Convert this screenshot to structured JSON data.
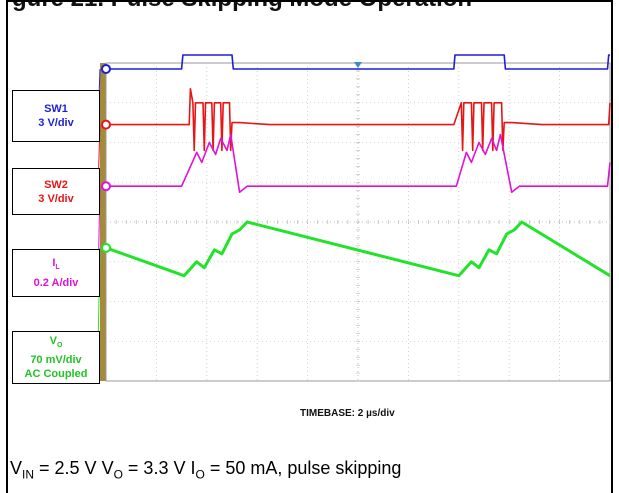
{
  "header": {
    "clipped_title": "gure 21. Pulse Skipping Mode Operation"
  },
  "chart_data": {
    "type": "line",
    "title": "",
    "timebase": "TIMEBASE: 2 µs/div",
    "grid": true,
    "divisions": {
      "x": 10,
      "y": 8
    },
    "x_range_us": [
      0,
      20
    ],
    "channels": [
      {
        "name": "SW1",
        "scale": "3 V/div",
        "color": "#1f1fd6",
        "points_us_div": [
          [
            0,
            3.85
          ],
          [
            3.0,
            3.85
          ],
          [
            3.05,
            4.2
          ],
          [
            5.0,
            4.2
          ],
          [
            5.05,
            3.85
          ],
          [
            13.8,
            3.85
          ],
          [
            13.85,
            4.2
          ],
          [
            15.8,
            4.2
          ],
          [
            15.85,
            3.85
          ],
          [
            19.9,
            3.85
          ],
          [
            19.95,
            4.2
          ],
          [
            20,
            4.2
          ]
        ]
      },
      {
        "name": "SW2",
        "scale": "3 V/div",
        "color": "#e81515",
        "points_us_div": [
          [
            0,
            2.45
          ],
          [
            3.3,
            2.45
          ],
          [
            3.35,
            3.35
          ],
          [
            3.45,
            3.0
          ],
          [
            3.5,
            1.8
          ],
          [
            3.55,
            3.0
          ],
          [
            3.85,
            3.0
          ],
          [
            3.9,
            1.8
          ],
          [
            3.95,
            3.0
          ],
          [
            4.2,
            3.0
          ],
          [
            4.25,
            1.8
          ],
          [
            4.3,
            3.0
          ],
          [
            4.55,
            3.0
          ],
          [
            4.6,
            1.8
          ],
          [
            4.65,
            3.0
          ],
          [
            4.9,
            3.0
          ],
          [
            4.95,
            1.8
          ],
          [
            5.0,
            2.5
          ],
          [
            5.3,
            2.5
          ],
          [
            6.5,
            2.45
          ],
          [
            13.8,
            2.45
          ],
          [
            14.1,
            3.0
          ],
          [
            14.15,
            1.8
          ],
          [
            14.2,
            3.0
          ],
          [
            14.5,
            3.0
          ],
          [
            14.55,
            1.8
          ],
          [
            14.6,
            3.0
          ],
          [
            14.9,
            3.0
          ],
          [
            14.95,
            1.8
          ],
          [
            15.0,
            3.0
          ],
          [
            15.3,
            3.0
          ],
          [
            15.35,
            1.8
          ],
          [
            15.4,
            3.0
          ],
          [
            15.7,
            3.0
          ],
          [
            15.75,
            1.8
          ],
          [
            15.8,
            2.5
          ],
          [
            16.1,
            2.5
          ],
          [
            17.3,
            2.45
          ],
          [
            19.95,
            2.45
          ],
          [
            20,
            3.0
          ]
        ]
      },
      {
        "name": "I",
        "name_sub": "L",
        "scale": "0.2 A/div",
        "color": "#e012d8",
        "points_us_div": [
          [
            0,
            0.9
          ],
          [
            3.0,
            0.9
          ],
          [
            3.6,
            1.75
          ],
          [
            3.8,
            1.5
          ],
          [
            4.1,
            2.0
          ],
          [
            4.35,
            1.7
          ],
          [
            4.55,
            2.1
          ],
          [
            4.8,
            1.8
          ],
          [
            4.95,
            2.2
          ],
          [
            5.3,
            0.75
          ],
          [
            5.6,
            0.9
          ],
          [
            13.9,
            0.9
          ],
          [
            14.3,
            1.75
          ],
          [
            14.5,
            1.5
          ],
          [
            14.8,
            2.0
          ],
          [
            15.05,
            1.7
          ],
          [
            15.3,
            2.1
          ],
          [
            15.5,
            1.8
          ],
          [
            15.65,
            2.2
          ],
          [
            16.1,
            0.75
          ],
          [
            16.4,
            0.9
          ],
          [
            19.9,
            0.9
          ],
          [
            20,
            1.5
          ]
        ]
      },
      {
        "name": "V",
        "name_sub": "O",
        "scale": "70 mV/div",
        "extra": "AC Coupled",
        "color": "#22e22a",
        "points_us_div": [
          [
            0,
            -0.65
          ],
          [
            3.1,
            -1.35
          ],
          [
            3.6,
            -1.0
          ],
          [
            3.9,
            -1.15
          ],
          [
            4.3,
            -0.7
          ],
          [
            4.6,
            -0.8
          ],
          [
            5.0,
            -0.3
          ],
          [
            5.3,
            -0.2
          ],
          [
            5.6,
            0.0
          ],
          [
            14.0,
            -1.35
          ],
          [
            14.5,
            -1.0
          ],
          [
            14.8,
            -1.15
          ],
          [
            15.2,
            -0.7
          ],
          [
            15.5,
            -0.8
          ],
          [
            15.9,
            -0.3
          ],
          [
            16.2,
            -0.2
          ],
          [
            16.5,
            0.0
          ],
          [
            20,
            -1.35
          ]
        ]
      }
    ]
  },
  "caption": {
    "v_in": "V",
    "v_in_sub": "IN",
    "v_in_val": " = 2.5 V ",
    "v_o": "V",
    "v_o_sub": "O",
    "v_o_val": " = 3.3 V ",
    "i_o": "I",
    "i_o_sub": "O",
    "i_o_val": " = 50 mA, pulse skipping"
  }
}
